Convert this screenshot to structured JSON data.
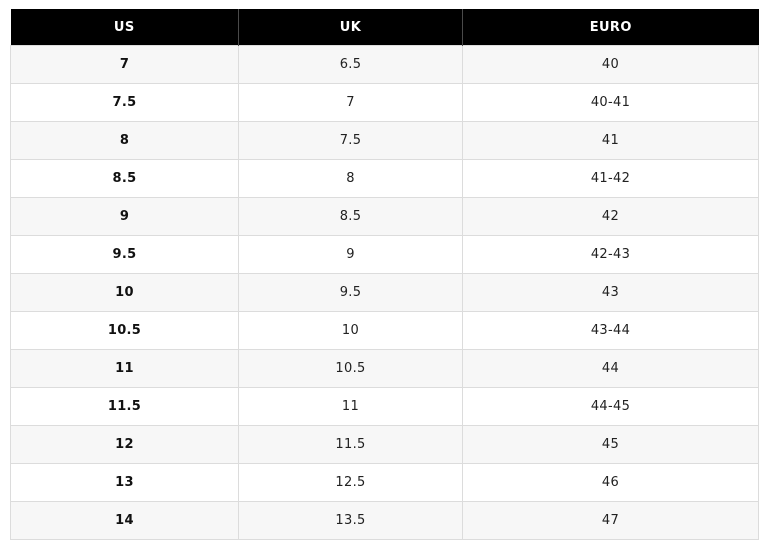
{
  "headers": [
    "US",
    "UK",
    "EURO"
  ],
  "rows": [
    {
      "us": "7",
      "uk": "6.5",
      "euro": "40"
    },
    {
      "us": "7.5",
      "uk": "7",
      "euro": "40-41"
    },
    {
      "us": "8",
      "uk": "7.5",
      "euro": "41"
    },
    {
      "us": "8.5",
      "uk": "8",
      "euro": "41-42"
    },
    {
      "us": "9",
      "uk": "8.5",
      "euro": "42"
    },
    {
      "us": "9.5",
      "uk": "9",
      "euro": "42-43"
    },
    {
      "us": "10",
      "uk": "9.5",
      "euro": "43"
    },
    {
      "us": "10.5",
      "uk": "10",
      "euro": "43-44"
    },
    {
      "us": "11",
      "uk": "10.5",
      "euro": "44"
    },
    {
      "us": "11.5",
      "uk": "11",
      "euro": "44-45"
    },
    {
      "us": "12",
      "uk": "11.5",
      "euro": "45"
    },
    {
      "us": "13",
      "uk": "12.5",
      "euro": "46"
    },
    {
      "us": "14",
      "uk": "13.5",
      "euro": "47"
    }
  ],
  "colors": {
    "header_bg": "#000000",
    "header_text": "#ffffff",
    "row_alt_bg": "#f7f7f7",
    "row_bg": "#ffffff",
    "border": "#dcdcdc"
  }
}
